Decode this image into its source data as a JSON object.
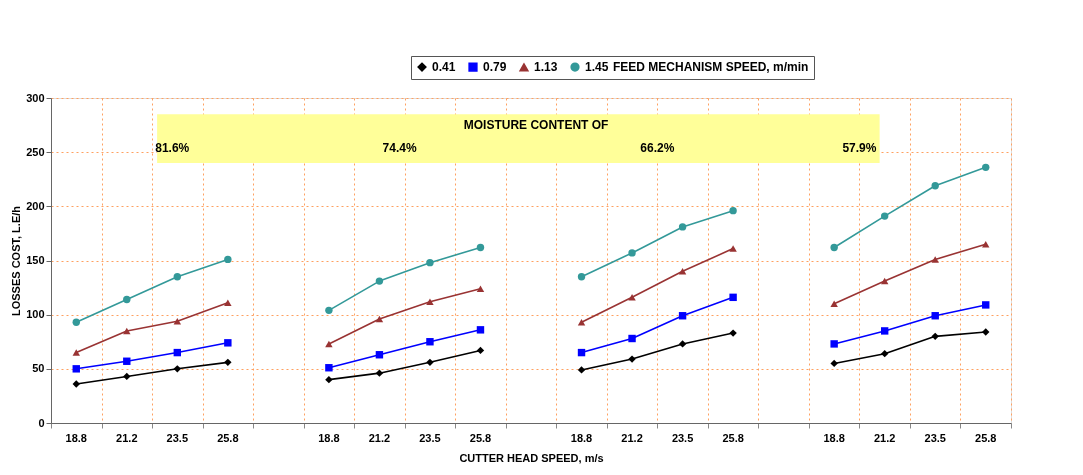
{
  "chart_data": {
    "type": "line",
    "xlabel": "CUTTER HEAD SPEED, m/s",
    "ylabel": "LOSSES COST, L.E/h",
    "legend_title": "FEED MECHANISM SPEED, m/min",
    "categories": [
      "18.8",
      "21.2",
      "23.5",
      "25.8",
      null,
      "18.8",
      "21.2",
      "23.5",
      "25.8",
      null,
      "18.8",
      "21.2",
      "23.5",
      "25.8",
      null,
      "18.8",
      "21.2",
      "23.5",
      "25.8"
    ],
    "series": [
      {
        "name": "0.41",
        "color": "#000000",
        "marker": "diamond",
        "values": [
          36,
          43,
          50,
          56,
          null,
          40,
          46,
          56,
          67,
          null,
          49,
          59,
          73,
          83,
          null,
          55,
          64,
          80,
          84
        ]
      },
      {
        "name": "0.79",
        "color": "#0000ff",
        "marker": "square",
        "values": [
          50,
          57,
          65,
          74,
          null,
          51,
          63,
          75,
          86,
          null,
          65,
          78,
          99,
          116,
          null,
          73,
          85,
          99,
          109
        ]
      },
      {
        "name": "1.13",
        "color": "#993333",
        "marker": "triangle",
        "values": [
          65,
          85,
          94,
          111,
          null,
          73,
          96,
          112,
          124,
          null,
          93,
          116,
          140,
          161,
          null,
          110,
          131,
          151,
          165
        ]
      },
      {
        "name": "1.45",
        "color": "#339999",
        "marker": "circle",
        "values": [
          93,
          114,
          135,
          151,
          null,
          104,
          131,
          148,
          162,
          null,
          135,
          157,
          181,
          196,
          null,
          162,
          191,
          219,
          236
        ]
      }
    ],
    "ylim": [
      0,
      300
    ],
    "yticks": [
      0,
      50,
      100,
      150,
      200,
      250,
      300
    ],
    "grid": true,
    "legend": "top right",
    "bands": [
      {
        "axis": "y",
        "from": 240,
        "to": 285,
        "label": "MOISTURE CONTENT OF",
        "color": "#ffff99"
      }
    ],
    "annotations": [
      "81.6%",
      "74.4%",
      "66.2%",
      "57.9%"
    ]
  }
}
